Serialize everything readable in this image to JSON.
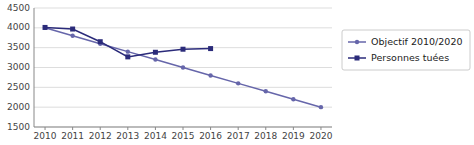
{
  "chart_data": {
    "type": "line",
    "x": [
      2010,
      2011,
      2012,
      2013,
      2014,
      2015,
      2016,
      2017,
      2018,
      2019,
      2020
    ],
    "xlim": [
      2009.6,
      2020.4
    ],
    "xticks": [
      2010,
      2011,
      2012,
      2013,
      2014,
      2015,
      2016,
      2017,
      2018,
      2019,
      2020
    ],
    "ylim": [
      1500,
      4500
    ],
    "yticks": [
      1500,
      2000,
      2500,
      3000,
      3500,
      4000,
      4500
    ],
    "grid": true,
    "legend": "right",
    "series": [
      {
        "name": "Objectif 2010/2020",
        "color": "#6666AA",
        "marker": "circle",
        "values": [
          4000,
          3800,
          3600,
          3400,
          3200,
          3000,
          2800,
          2600,
          2400,
          2200,
          2000
        ]
      },
      {
        "name": "Personnes tuées",
        "color": "#2B2B7A",
        "marker": "square",
        "values": [
          4010,
          3970,
          3650,
          3268,
          3384,
          3461,
          3477,
          null,
          null,
          null,
          null
        ]
      }
    ]
  }
}
